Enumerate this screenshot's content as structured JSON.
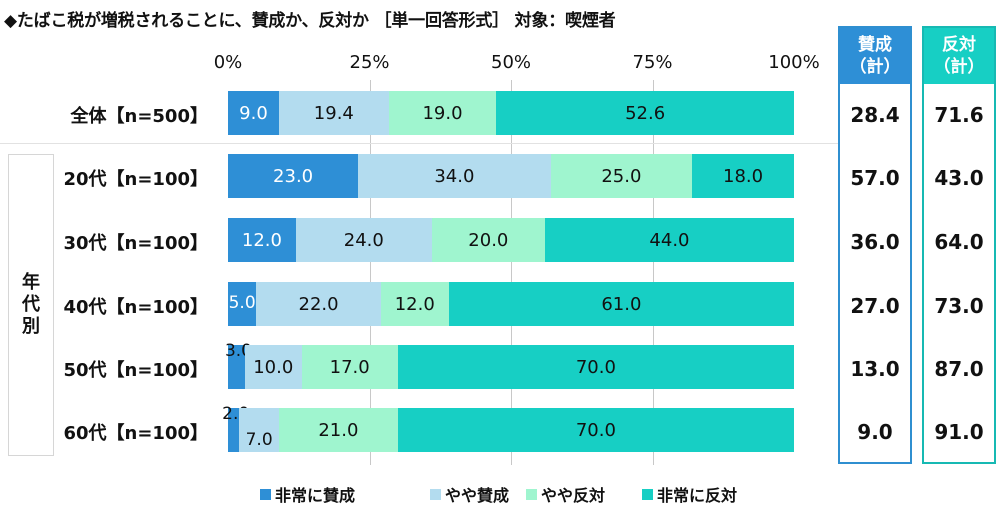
{
  "title": "◆たばこ税が増税されることに、賛成か、反対か ［単一回答形式］ 対象：喫煙者",
  "colors": {
    "strong_agree": "#2e8fd6",
    "agree": "#b3dcef",
    "disagree": "#9ff5cf",
    "strong_disagree": "#17cfc4",
    "agree_col_border": "#2f8fd0",
    "agree_col_head": "#2e8fd6",
    "disagree_col_border": "#17b9b3",
    "disagree_col_head": "#17cfc4"
  },
  "group_label": [
    "年",
    "代",
    "別"
  ],
  "columns": {
    "agree_total": {
      "line1": "賛成",
      "line2": "（計）"
    },
    "disagree_total": {
      "line1": "反対",
      "line2": "（計）"
    }
  },
  "chart_data": {
    "type": "bar",
    "orientation": "horizontal",
    "stacked": true,
    "xlim": [
      0,
      100
    ],
    "x_ticks": [
      "0%",
      "25%",
      "50%",
      "75%",
      "100%"
    ],
    "categories": [
      "全体【n=500】",
      "20代【n=100】",
      "30代【n=100】",
      "40代【n=100】",
      "50代【n=100】",
      "60代【n=100】"
    ],
    "series": [
      {
        "name": "非常に賛成",
        "values": [
          9.0,
          23.0,
          12.0,
          5.0,
          3.0,
          2.0
        ]
      },
      {
        "name": "やや賛成",
        "values": [
          19.4,
          34.0,
          24.0,
          22.0,
          10.0,
          7.0
        ]
      },
      {
        "name": "やや反対",
        "values": [
          19.0,
          25.0,
          20.0,
          12.0,
          17.0,
          21.0
        ]
      },
      {
        "name": "非常に反対",
        "values": [
          52.6,
          18.0,
          44.0,
          61.0,
          70.0,
          70.0
        ]
      }
    ],
    "labels": [
      [
        "9.0",
        "19.4",
        "19.0",
        "52.6"
      ],
      [
        "23.0",
        "34.0",
        "25.0",
        "18.0"
      ],
      [
        "12.0",
        "24.0",
        "20.0",
        "44.0"
      ],
      [
        "5.0",
        "22.0",
        "12.0",
        "61.0"
      ],
      [
        "3.0",
        "10.0",
        "17.0",
        "70.0"
      ],
      [
        "2.0",
        "7.0",
        "21.0",
        "70.0"
      ]
    ],
    "agree_total": [
      "28.4",
      "57.0",
      "36.0",
      "27.0",
      "13.0",
      "9.0"
    ],
    "disagree_total": [
      "71.6",
      "43.0",
      "64.0",
      "73.0",
      "87.0",
      "91.0"
    ],
    "legend_position": "bottom"
  }
}
